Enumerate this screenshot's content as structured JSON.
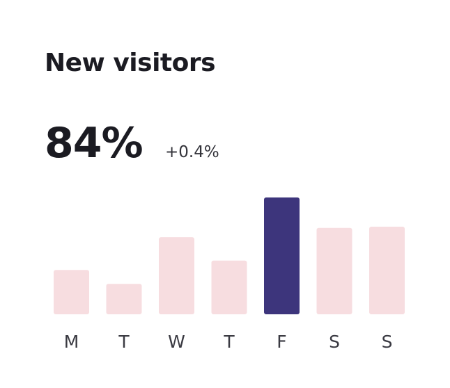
{
  "card": {
    "title": "New visitors",
    "value": "84%",
    "delta": "+0.4%"
  },
  "colors": {
    "bar_default": "#f7dde0",
    "bar_highlight": "#3d357c",
    "text_primary": "#1b1b22"
  },
  "chart_data": {
    "type": "bar",
    "categories": [
      "M",
      "T",
      "W",
      "T",
      "F",
      "S",
      "S"
    ],
    "values": [
      38,
      26,
      66,
      46,
      100,
      74,
      75
    ],
    "highlight_index": 4,
    "ylim": [
      0,
      100
    ]
  }
}
